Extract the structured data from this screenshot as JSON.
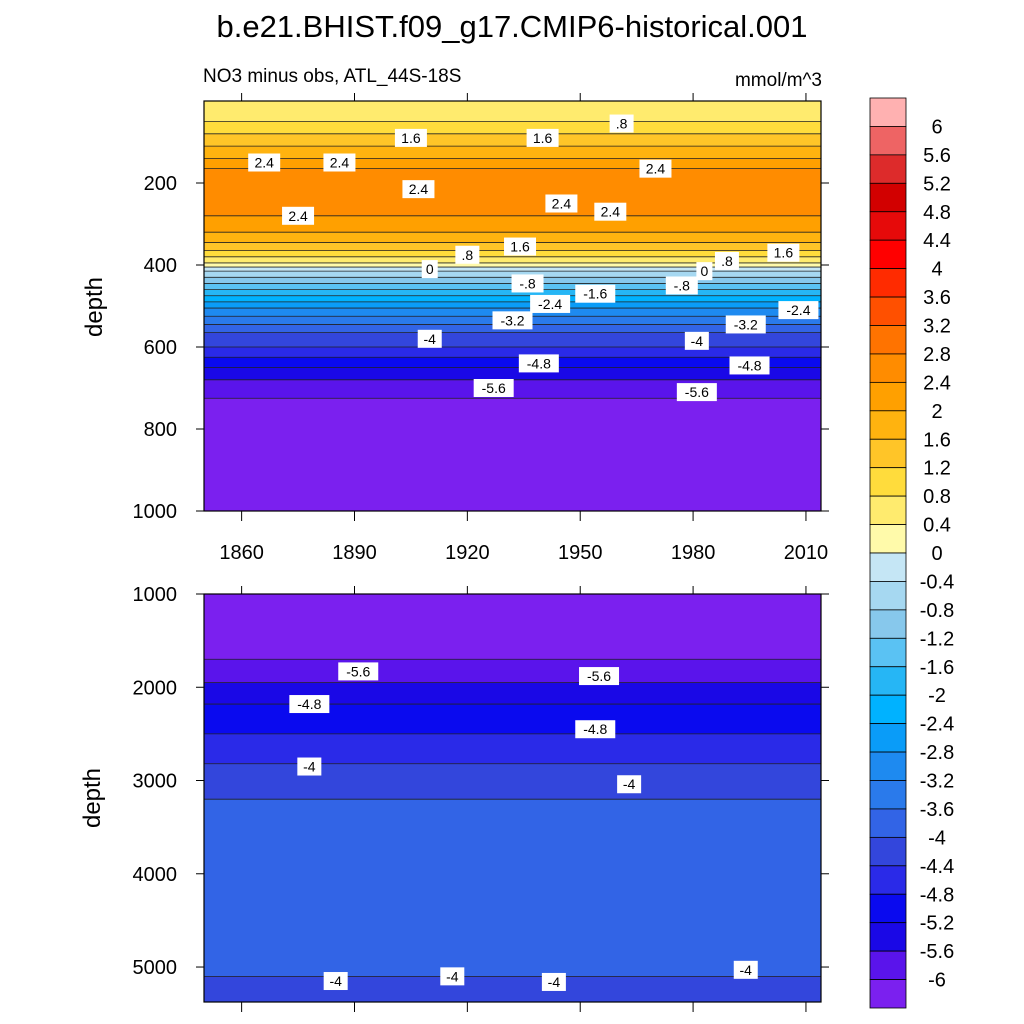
{
  "chart_data": {
    "type": "heatmap",
    "title": "b.e21.BHIST.f09_g17.CMIP6-historical.001",
    "subtitle": "NO3 minus obs, ATL_44S-18S",
    "units": "mmol/m^3",
    "xlim": [
      1850,
      2014
    ],
    "x_ticks": [
      1860,
      1890,
      1920,
      1950,
      1980,
      2010
    ],
    "colorbar": {
      "levels": [
        6,
        5.6,
        5.2,
        4.8,
        4.4,
        4,
        3.6,
        3.2,
        2.8,
        2.4,
        2,
        1.6,
        1.2,
        0.8,
        0.4,
        0,
        -0.4,
        -0.8,
        -1.2,
        -1.6,
        -2,
        -2.4,
        -2.8,
        -3.2,
        -3.6,
        -4,
        -4.4,
        -4.8,
        -5.2,
        -5.6,
        -6
      ],
      "labels": [
        "6",
        "5.6",
        "5.2",
        "4.8",
        "4.4",
        "4",
        "3.6",
        "3.2",
        "2.8",
        "2.4",
        "2",
        "1.6",
        "1.2",
        "0.8",
        "0.4",
        "0",
        "-0.4",
        "-0.8",
        "-1.2",
        "-1.6",
        "-2",
        "-2.4",
        "-2.8",
        "-3.2",
        "-3.6",
        "-4",
        "-4.4",
        "-4.8",
        "-5.2",
        "-5.6",
        "-6"
      ],
      "colors": [
        "#ffb1b1",
        "#ee6464",
        "#dd2b2b",
        "#d20000",
        "#e60a0a",
        "#ff0000",
        "#ff2b00",
        "#ff5000",
        "#ff7300",
        "#ff8c00",
        "#ffa000",
        "#ffb30f",
        "#ffc528",
        "#ffdc3c",
        "#ffeb6e",
        "#fffaaa",
        "#c5e6f5",
        "#a6d8f1",
        "#87c8ec",
        "#5ac2f3",
        "#26b6f5",
        "#00b2ff",
        "#0a9cf8",
        "#1e8af0",
        "#2a7aeb",
        "#3264e6",
        "#3346dc",
        "#2a2ae8",
        "#0a0aef",
        "#1a08e6",
        "#5a14eb",
        "#7b20ef"
      ]
    },
    "panels": [
      {
        "name": "upper",
        "ylabel": "depth",
        "ylim": [
          0,
          1000
        ],
        "y_ticks": [
          200,
          400,
          600,
          800,
          1000
        ],
        "x_tick_labels": [
          "1860",
          "1890",
          "1920",
          "1950",
          "1980",
          "2010"
        ],
        "bands": [
          {
            "top": 0,
            "value": 0.6
          },
          {
            "top": 50,
            "value": 1.0
          },
          {
            "top": 80,
            "value": 1.4
          },
          {
            "top": 110,
            "value": 1.8
          },
          {
            "top": 140,
            "value": 2.2
          },
          {
            "top": 165,
            "value": 2.6
          },
          {
            "top": 280,
            "value": 2.2
          },
          {
            "top": 320,
            "value": 1.8
          },
          {
            "top": 345,
            "value": 1.4
          },
          {
            "top": 365,
            "value": 1.0
          },
          {
            "top": 380,
            "value": 0.6
          },
          {
            "top": 395,
            "value": 0.2
          },
          {
            "top": 405,
            "value": -0.2
          },
          {
            "top": 415,
            "value": -0.6
          },
          {
            "top": 430,
            "value": -1.0
          },
          {
            "top": 445,
            "value": -1.4
          },
          {
            "top": 460,
            "value": -1.8
          },
          {
            "top": 475,
            "value": -2.2
          },
          {
            "top": 490,
            "value": -2.6
          },
          {
            "top": 505,
            "value": -3.0
          },
          {
            "top": 525,
            "value": -3.4
          },
          {
            "top": 545,
            "value": -3.8
          },
          {
            "top": 565,
            "value": -4.2
          },
          {
            "top": 600,
            "value": -4.6
          },
          {
            "top": 625,
            "value": -5.0
          },
          {
            "top": 650,
            "value": -5.4
          },
          {
            "top": 680,
            "value": -5.8
          },
          {
            "top": 725,
            "value": -6.2
          }
        ],
        "contour_labels": [
          {
            "text": "1.6",
            "x": 1905,
            "depth": 90
          },
          {
            "text": "1.6",
            "x": 1940,
            "depth": 90
          },
          {
            "text": ".8",
            "x": 1961,
            "depth": 55
          },
          {
            "text": "2.4",
            "x": 1866,
            "depth": 150
          },
          {
            "text": "2.4",
            "x": 1886,
            "depth": 150
          },
          {
            "text": "2.4",
            "x": 1907,
            "depth": 215
          },
          {
            "text": "2.4",
            "x": 1970,
            "depth": 165
          },
          {
            "text": "2.4",
            "x": 1875,
            "depth": 280
          },
          {
            "text": "2.4",
            "x": 1945,
            "depth": 250
          },
          {
            "text": "2.4",
            "x": 1958,
            "depth": 270
          },
          {
            "text": ".8",
            "x": 1920,
            "depth": 375
          },
          {
            "text": "1.6",
            "x": 1934,
            "depth": 355
          },
          {
            "text": "0",
            "x": 1910,
            "depth": 410
          },
          {
            "text": "-.8",
            "x": 1936,
            "depth": 445
          },
          {
            "text": "0",
            "x": 1983,
            "depth": 415
          },
          {
            "text": ".8",
            "x": 1989,
            "depth": 390
          },
          {
            "text": "1.6",
            "x": 2004,
            "depth": 370
          },
          {
            "text": "-.8",
            "x": 1977,
            "depth": 450
          },
          {
            "text": "-1.6",
            "x": 1954,
            "depth": 470
          },
          {
            "text": "-2.4",
            "x": 1942,
            "depth": 495
          },
          {
            "text": "-2.4",
            "x": 2008,
            "depth": 510
          },
          {
            "text": "-3.2",
            "x": 1932,
            "depth": 535
          },
          {
            "text": "-3.2",
            "x": 1994,
            "depth": 545
          },
          {
            "text": "-4",
            "x": 1910,
            "depth": 580
          },
          {
            "text": "-4",
            "x": 1981,
            "depth": 585
          },
          {
            "text": "-4.8",
            "x": 1939,
            "depth": 640
          },
          {
            "text": "-4.8",
            "x": 1995,
            "depth": 645
          },
          {
            "text": "-5.6",
            "x": 1927,
            "depth": 700
          },
          {
            "text": "-5.6",
            "x": 1981,
            "depth": 710
          }
        ]
      },
      {
        "name": "lower",
        "ylabel": "depth",
        "ylim": [
          1000,
          5375
        ],
        "y_ticks": [
          1000,
          2000,
          3000,
          4000,
          5000
        ],
        "x_tick_labels": [
          "",
          "",
          "",
          "",
          "",
          ""
        ],
        "bands": [
          {
            "top": 1000,
            "value": -6.2
          },
          {
            "top": 1700,
            "value": -5.8
          },
          {
            "top": 1950,
            "value": -5.4
          },
          {
            "top": 2180,
            "value": -5.0
          },
          {
            "top": 2500,
            "value": -4.6
          },
          {
            "top": 2820,
            "value": -4.2
          },
          {
            "top": 3200,
            "value": -3.8
          },
          {
            "top": 5100,
            "value": -4.2
          }
        ],
        "contour_labels": [
          {
            "text": "-5.6",
            "x": 1891,
            "depth": 1830
          },
          {
            "text": "-5.6",
            "x": 1955,
            "depth": 1880
          },
          {
            "text": "-4.8",
            "x": 1878,
            "depth": 2180
          },
          {
            "text": "-4.8",
            "x": 1954,
            "depth": 2450
          },
          {
            "text": "-4",
            "x": 1878,
            "depth": 2850
          },
          {
            "text": "-4",
            "x": 1963,
            "depth": 3040
          },
          {
            "text": "-4",
            "x": 1885,
            "depth": 5150
          },
          {
            "text": "-4",
            "x": 1916,
            "depth": 5100
          },
          {
            "text": "-4",
            "x": 1943,
            "depth": 5160
          },
          {
            "text": "-4",
            "x": 1994,
            "depth": 5030
          }
        ]
      }
    ]
  }
}
